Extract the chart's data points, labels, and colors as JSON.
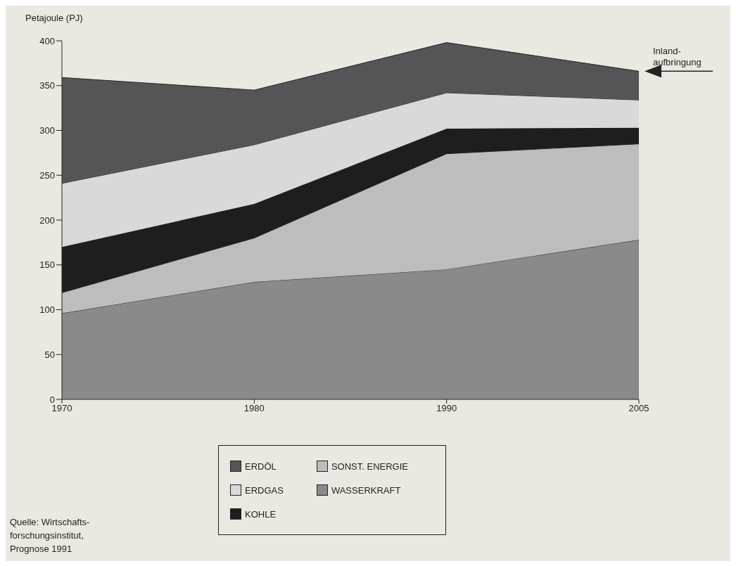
{
  "chart_data": {
    "type": "area",
    "stacked": true,
    "ylabel": "Petajoule (PJ)",
    "categories": [
      "1970",
      "1980",
      "1990",
      "2005"
    ],
    "series": [
      {
        "name": "WASSERKRAFT",
        "color": "#8a8a8a",
        "values": [
          96,
          131,
          145,
          178
        ]
      },
      {
        "name": "SONST. ENERGIE",
        "color": "#bdbdbd",
        "values": [
          23,
          49,
          129,
          107
        ]
      },
      {
        "name": "KOHLE",
        "color": "#1e1e1e",
        "values": [
          51,
          38,
          28,
          18
        ]
      },
      {
        "name": "ERDGAS",
        "color": "#d9d9d9",
        "values": [
          71,
          66,
          40,
          31
        ]
      },
      {
        "name": "ERDÖL",
        "color": "#555555",
        "values": [
          118,
          61,
          56,
          32
        ]
      }
    ],
    "ylim": [
      0,
      400
    ],
    "yticks": [
      0,
      50,
      100,
      150,
      200,
      250,
      300,
      350,
      400
    ],
    "grid": false,
    "legend": "bottom",
    "annotations": [
      {
        "text": "Inland-\naufbringung",
        "x": "2005",
        "y": 366
      },
      "Quelle: Wirtschafts-\nforschungsinstitut,\nPrognose 1991"
    ]
  }
}
